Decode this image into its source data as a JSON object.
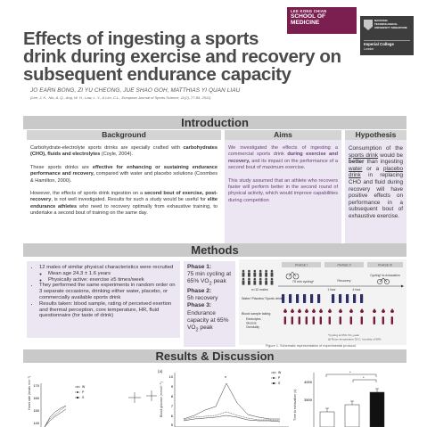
{
  "header": {
    "title_line1": "Effects of ingesting a sports",
    "title_line2": "drink during exercise and recovery on",
    "title_line3": "subsequent endurance capacity",
    "authors": "JO EARN BONG, ZI YU CHEONG, JUE SHAO GOH, MATTHIAS YI QUAN LIAU",
    "citation": "(Lee, J. K., Nio, A. Q., Ang, W. H., Law, L. Y., & Lim, C.L., European Journal of Sports Science, 11(2), 77-86, 2011)"
  },
  "logos": {
    "lkc_line1": "LEE KONG CHIAN",
    "lkc_line2": "SCHOOL OF",
    "lkc_line3": "MEDICINE",
    "ntu_text": "NANYANG TECHNOLOGICAL UNIVERSITY SINGAPORE",
    "imperial_line1": "Imperial College",
    "imperial_line2": "London",
    "lkc_color": "#7a1f4f",
    "ntu_color": "#3d3d3d"
  },
  "sections": {
    "introduction": "Introduction",
    "methods": "Methods",
    "results": "Results & Discussion"
  },
  "background": {
    "heading": "Background",
    "p1_a": "Carbohydrate-electrolyte sports drinks are specially crafted with ",
    "p1_b": "carbohydrates (CHO), fluids and electrolytes",
    "p1_c": " (Coyle, 2004).",
    "p2_a": "These sports drinks are ",
    "p2_b": "effective for enhancing or sustaining endurance performance and recovery,",
    "p2_c": " compared with water and placebo solutions (Coombes & Hamilton, 2000).",
    "p3_a": "However, the effects of sports drink ingestion on a ",
    "p3_b": "second bout of exercise, post-recovery",
    "p3_c": ", is not well investigated. Results for such a study would be useful for ",
    "p3_d": "elite endurance athletes",
    "p3_e": " who need to recovery optimally from exhaustive training, to undertake a second bout of training on the same day."
  },
  "aims": {
    "heading": "Aims",
    "p1_a": "We investigated the effects of ingesting a commercial sports drink ",
    "p1_b": "during exercise and recovery,",
    "p1_c": " and its impact on the performance of a second bout of maximum exercise.",
    "p2": "This study assumed that an athlete who recovers faster will perform better in the second round of physical activity, which would improve capabilities during competition"
  },
  "hypothesis": {
    "heading": "Hypothesis",
    "t1": "Consumption of the ",
    "t2": "sports drink",
    "t3": " would be ",
    "t4": "better",
    "t5": " than ingesting ",
    "t6": "water",
    "t7": " or a ",
    "t8": "placebo drink",
    "t9": " in replacing CHO and fluid during recovery will have positive effects on performance in a subsequent bout of exhaustive exercise."
  },
  "methods": {
    "b1": "12 males of similar physical characteristics were recruited",
    "b1a": "Mean age 24.3 ± 1.6 years",
    "b1b": "Physically active: exercise ≥5 times/week",
    "b2": "They performed the same experiments in random order on 3 separate occasions, drinking either water, placebo, or commercially available sports drink",
    "b3": "Results taken: blood sample, rating of perceived exertion and thermal perception, core temperature, HR, fluid questionnaire (for taste of drink)",
    "phase1_label": "Phase 1:",
    "phase1_text": "75 min cycling at 65% VO",
    "phase1_tail": " peak",
    "phase2_label": "Phase 2:",
    "phase2_text": "5h recovery",
    "phase3_label": "Phase 3:",
    "phase3_text": "Endurance capacity at 65% VO",
    "phase3_tail": " peak",
    "caption": "Figure 1. Schematic representation of experimental protocol."
  },
  "schematic": {
    "phase1": "PHASE I",
    "phase2": "PHASE II",
    "phase3": "PHASE III",
    "n_label": "n=12 males",
    "cycling_label": "75 min cycling*",
    "water_label": "Water/ Placebo/ Sports drink",
    "blood_label": "Blood sample taking",
    "blood_items": [
      "Electrolytes",
      "Glucose",
      "Osmolality"
    ],
    "recovery_label": "Recovery",
    "hour1": "1 hour",
    "hour4": "4 hour",
    "cycling_exh": "Cycling* to exhaustion",
    "foot1": "*Cycling at 65% VO₂ peak",
    "foot2": "@ Room temperature 32°C, humidity of 68%",
    "drink_color": "#2b2f66",
    "blood_color": "#7b1a3c"
  },
  "results": {
    "a_label": "",
    "a_ylabel": "Heart rate (beats min⁻¹)",
    "a_yticks": [
      "170",
      "160",
      "150",
      "140"
    ],
    "a_legend": [
      "W",
      "P",
      "S"
    ],
    "b_label": "(a)",
    "b_ylabel": "Blood glucose (mmol l⁻¹)",
    "b_yticks": [
      "10",
      "9",
      "8",
      "7",
      "6",
      "5"
    ],
    "b_legend": [
      "W",
      "P",
      "S"
    ],
    "c_ylabel": "Time to exhaustion (s)",
    "c_yticks": [
      "4000",
      "3500"
    ],
    "c_values": [
      3100,
      3300,
      3650
    ],
    "c_colors": [
      "#ffffff",
      "#ffffff",
      "#111111"
    ]
  }
}
